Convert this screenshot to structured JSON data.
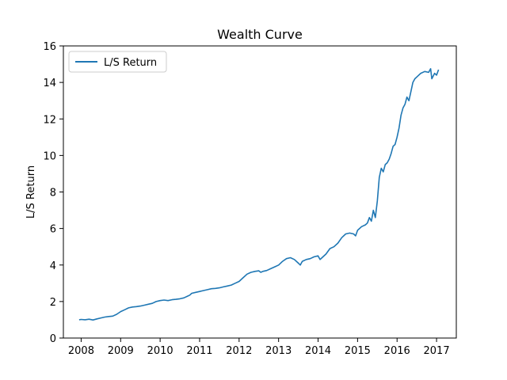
{
  "chart_data": {
    "type": "line",
    "title": "Wealth Curve",
    "xlabel": "",
    "ylabel": "L/S Return",
    "xlim": [
      2007.55,
      2017.5
    ],
    "ylim": [
      0,
      16
    ],
    "x_ticks": [
      2008,
      2009,
      2010,
      2011,
      2012,
      2013,
      2014,
      2015,
      2016,
      2017
    ],
    "x_tick_labels": [
      "2008",
      "2009",
      "2010",
      "2011",
      "2012",
      "2013",
      "2014",
      "2015",
      "2016",
      "2017"
    ],
    "y_ticks": [
      0,
      2,
      4,
      6,
      8,
      10,
      12,
      14,
      16
    ],
    "y_tick_labels": [
      "0",
      "2",
      "4",
      "6",
      "8",
      "10",
      "12",
      "14",
      "16"
    ],
    "grid": false,
    "legend_position": "top-left",
    "series": [
      {
        "name": "L/S Return",
        "color": "#1f77b4",
        "x": [
          2007.95,
          2008.0,
          2008.1,
          2008.2,
          2008.3,
          2008.4,
          2008.5,
          2008.6,
          2008.7,
          2008.8,
          2008.9,
          2009.0,
          2009.1,
          2009.2,
          2009.3,
          2009.4,
          2009.5,
          2009.6,
          2009.7,
          2009.8,
          2009.9,
          2010.0,
          2010.1,
          2010.2,
          2010.3,
          2010.4,
          2010.5,
          2010.6,
          2010.7,
          2010.75,
          2010.8,
          2010.9,
          2011.0,
          2011.1,
          2011.2,
          2011.3,
          2011.4,
          2011.5,
          2011.6,
          2011.7,
          2011.8,
          2011.9,
          2012.0,
          2012.1,
          2012.2,
          2012.3,
          2012.4,
          2012.5,
          2012.55,
          2012.6,
          2012.7,
          2012.8,
          2012.9,
          2013.0,
          2013.1,
          2013.2,
          2013.3,
          2013.4,
          2013.5,
          2013.55,
          2013.6,
          2013.7,
          2013.8,
          2013.9,
          2014.0,
          2014.05,
          2014.1,
          2014.2,
          2014.3,
          2014.4,
          2014.5,
          2014.6,
          2014.7,
          2014.8,
          2014.9,
          2014.95,
          2015.0,
          2015.1,
          2015.2,
          2015.25,
          2015.3,
          2015.35,
          2015.4,
          2015.45,
          2015.5,
          2015.55,
          2015.6,
          2015.65,
          2015.7,
          2015.75,
          2015.8,
          2015.85,
          2015.9,
          2015.95,
          2016.0,
          2016.05,
          2016.1,
          2016.15,
          2016.2,
          2016.25,
          2016.3,
          2016.35,
          2016.4,
          2016.45,
          2016.5,
          2016.55,
          2016.6,
          2016.7,
          2016.8,
          2016.85,
          2016.88,
          2016.95,
          2017.0,
          2017.05
        ],
        "y": [
          1.0,
          1.02,
          1.0,
          1.03,
          0.99,
          1.05,
          1.1,
          1.15,
          1.18,
          1.2,
          1.3,
          1.45,
          1.55,
          1.65,
          1.7,
          1.72,
          1.75,
          1.8,
          1.85,
          1.9,
          2.0,
          2.05,
          2.08,
          2.05,
          2.1,
          2.12,
          2.15,
          2.2,
          2.3,
          2.35,
          2.45,
          2.5,
          2.55,
          2.6,
          2.65,
          2.7,
          2.72,
          2.75,
          2.8,
          2.85,
          2.9,
          3.0,
          3.1,
          3.3,
          3.5,
          3.6,
          3.65,
          3.68,
          3.6,
          3.65,
          3.7,
          3.8,
          3.9,
          4.0,
          4.2,
          4.35,
          4.4,
          4.3,
          4.1,
          4.0,
          4.2,
          4.3,
          4.35,
          4.45,
          4.5,
          4.3,
          4.4,
          4.6,
          4.9,
          5.0,
          5.2,
          5.5,
          5.7,
          5.75,
          5.7,
          5.6,
          5.9,
          6.1,
          6.2,
          6.3,
          6.6,
          6.4,
          7.0,
          6.6,
          7.5,
          8.8,
          9.3,
          9.1,
          9.5,
          9.6,
          9.8,
          10.1,
          10.5,
          10.6,
          11.0,
          11.5,
          12.2,
          12.6,
          12.8,
          13.2,
          13.0,
          13.5,
          14.0,
          14.2,
          14.3,
          14.4,
          14.5,
          14.6,
          14.55,
          14.75,
          14.2,
          14.5,
          14.4,
          14.7
        ]
      }
    ]
  }
}
